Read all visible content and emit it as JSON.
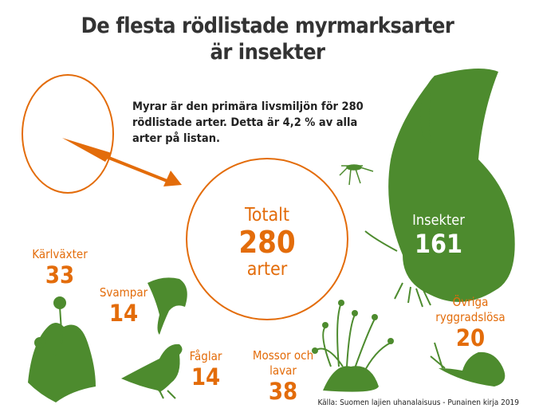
{
  "title_line1": "De flesta rödlistade myrmarksarter",
  "title_line2": "är insekter",
  "intro_text": "Myrar är den primära livsmiljön för 280 rödlistade arter. Detta är 4,2 % av alla arter på listan.",
  "total": {
    "label_top": "Totalt",
    "value": "280",
    "label_bottom": "arter"
  },
  "categories": [
    {
      "label": "Insekter",
      "value": "161"
    },
    {
      "label": "Kärlväxter",
      "value": "33"
    },
    {
      "label": "Svampar",
      "value": "14"
    },
    {
      "label": "Fåglar",
      "value": "14"
    },
    {
      "label": "Mossor och lavar",
      "value": "38"
    },
    {
      "label": "Övriga ryggradslösa",
      "value": "20"
    }
  ],
  "source": "Källa: Suomen lajien uhanalaisuus - Punainen kirja 2019",
  "colors": {
    "accent": "#e36c0a",
    "green": "#4d8b2e",
    "text": "#333333"
  },
  "icons": [
    "butterfly-icon",
    "mosquito-icon",
    "flower-icon",
    "chanterelle-icon",
    "grouse-icon",
    "moss-icon",
    "snail-icon"
  ]
}
